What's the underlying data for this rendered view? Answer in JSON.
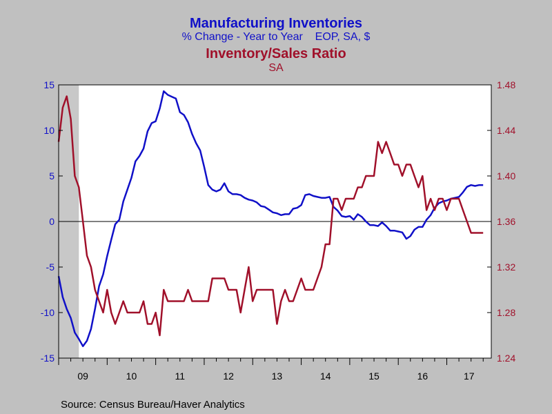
{
  "chart_data": {
    "type": "line",
    "title_left": "Manufacturing Inventories",
    "subtitle_left": "% Change - Year to Year    EOP, SA, $",
    "title_right": "Inventory/Sales Ratio",
    "subtitle_right": "SA",
    "source": "Source:  Census Bureau/Haver Analytics",
    "x_labels": [
      "09",
      "10",
      "11",
      "12",
      "13",
      "14",
      "15",
      "16",
      "17"
    ],
    "x_start": 2009.0,
    "x_end": 2017.917,
    "recession": [
      2009.0,
      2009.4167
    ],
    "y_left": {
      "min": -15,
      "max": 15,
      "ticks": [
        15,
        10,
        5,
        0,
        -5,
        -10,
        -15
      ]
    },
    "y_right": {
      "min": 1.24,
      "max": 1.48,
      "ticks": [
        "1.48",
        "1.44",
        "1.40",
        "1.36",
        "1.32",
        "1.28",
        "1.24"
      ]
    },
    "colors": {
      "left_series": "#1010c8",
      "right_series": "#a0102a",
      "recession_shade": "#c8c8c8",
      "plot_bg": "#ffffff",
      "page_bg": "#c0c0c0"
    },
    "series": [
      {
        "axis": "left",
        "start": 2009.0,
        "step": 0.08333,
        "values": [
          -6.0,
          -8.3,
          -9.6,
          -10.6,
          -12.2,
          -12.9,
          -13.7,
          -13.1,
          -11.8,
          -9.6,
          -7.1,
          -5.8,
          -3.8,
          -2.0,
          -0.3,
          0.2,
          2.2,
          3.5,
          4.8,
          6.6,
          7.2,
          8.0,
          9.9,
          10.8,
          11.0,
          12.4,
          14.3,
          13.9,
          13.7,
          13.5,
          12.0,
          11.7,
          10.9,
          9.6,
          8.6,
          7.8,
          6.0,
          4.0,
          3.5,
          3.3,
          3.5,
          4.2,
          3.3,
          3.0,
          3.0,
          2.9,
          2.6,
          2.4,
          2.3,
          2.1,
          1.7,
          1.6,
          1.3,
          1.0,
          0.9,
          0.7,
          0.8,
          0.8,
          1.4,
          1.5,
          1.8,
          2.9,
          3.0,
          2.8,
          2.7,
          2.6,
          2.6,
          2.7,
          1.6,
          1.2,
          0.6,
          0.5,
          0.6,
          0.2,
          0.8,
          0.5,
          0.0,
          -0.4,
          -0.4,
          -0.5,
          -0.1,
          -0.5,
          -1.0,
          -1.0,
          -1.1,
          -1.2,
          -1.9,
          -1.6,
          -0.9,
          -0.6,
          -0.6,
          0.2,
          0.7,
          1.5,
          2.0,
          2.2,
          2.3,
          2.5,
          2.6,
          2.7,
          3.2,
          3.8,
          4.0,
          3.9,
          4.0,
          4.0
        ]
      },
      {
        "axis": "right",
        "start": 2009.0,
        "step": 0.08333,
        "values": [
          1.43,
          1.46,
          1.47,
          1.45,
          1.4,
          1.39,
          1.36,
          1.33,
          1.32,
          1.3,
          1.29,
          1.28,
          1.3,
          1.28,
          1.27,
          1.28,
          1.29,
          1.28,
          1.28,
          1.28,
          1.28,
          1.29,
          1.27,
          1.27,
          1.28,
          1.26,
          1.3,
          1.29,
          1.29,
          1.29,
          1.29,
          1.29,
          1.3,
          1.29,
          1.29,
          1.29,
          1.29,
          1.29,
          1.31,
          1.31,
          1.31,
          1.31,
          1.3,
          1.3,
          1.3,
          1.28,
          1.3,
          1.32,
          1.29,
          1.3,
          1.3,
          1.3,
          1.3,
          1.3,
          1.27,
          1.29,
          1.3,
          1.29,
          1.29,
          1.3,
          1.31,
          1.3,
          1.3,
          1.3,
          1.31,
          1.32,
          1.34,
          1.34,
          1.38,
          1.38,
          1.37,
          1.38,
          1.38,
          1.38,
          1.39,
          1.39,
          1.4,
          1.4,
          1.4,
          1.43,
          1.42,
          1.43,
          1.42,
          1.41,
          1.41,
          1.4,
          1.41,
          1.41,
          1.4,
          1.39,
          1.4,
          1.37,
          1.38,
          1.37,
          1.38,
          1.38,
          1.37,
          1.38,
          1.38,
          1.38,
          1.37,
          1.36,
          1.35,
          1.35,
          1.35,
          1.35
        ]
      }
    ]
  }
}
